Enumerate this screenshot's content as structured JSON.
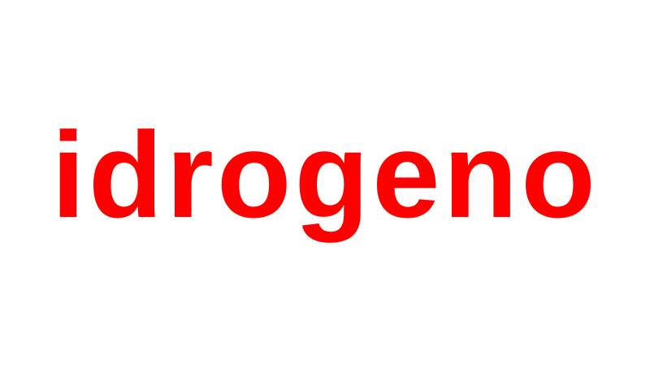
{
  "word": {
    "text": "idrogeno",
    "color": "#ff0000"
  },
  "background_color": "#ffffff"
}
